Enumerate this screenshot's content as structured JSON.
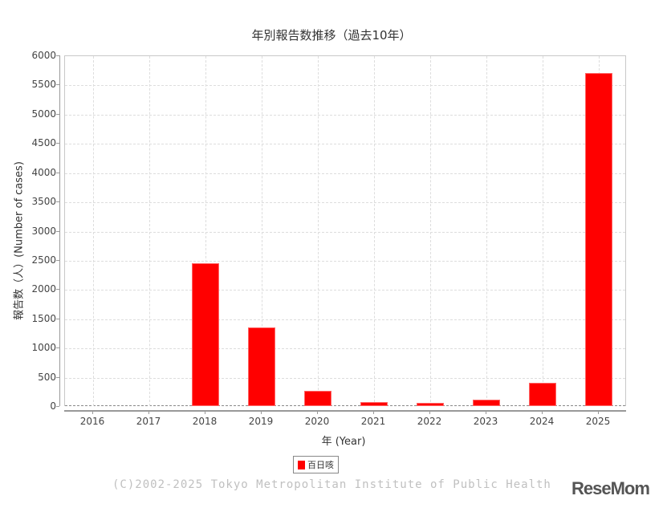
{
  "chart_data": {
    "type": "bar",
    "title": "年別報告数推移（過去10年）",
    "xlabel": "年 (Year)",
    "ylabel": "報告数（人）(Number of cases)",
    "categories": [
      "2016",
      "2017",
      "2018",
      "2019",
      "2020",
      "2021",
      "2022",
      "2023",
      "2024",
      "2025"
    ],
    "series": [
      {
        "name": "百日咳",
        "color": "#ff0000",
        "values": [
          0,
          0,
          2450,
          1350,
          260,
          70,
          55,
          110,
          400,
          5700
        ]
      }
    ],
    "ylim": [
      0,
      6000
    ],
    "yticks": [
      "0",
      "500",
      "1000",
      "1500",
      "2000",
      "2500",
      "3000",
      "3500",
      "4000",
      "4500",
      "5000",
      "5500",
      "6000"
    ],
    "grid": true,
    "legend_position": "bottom"
  },
  "legend": {
    "label": "百日咳"
  },
  "footer": {
    "copyright": "(C)2002-2025 Tokyo Metropolitan Institute of Public Health",
    "brand": "ReseMom"
  }
}
